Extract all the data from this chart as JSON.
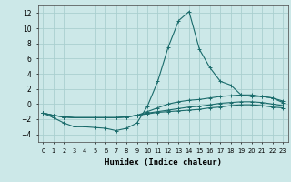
{
  "xlabel": "Humidex (Indice chaleur)",
  "background_color": "#cce8e8",
  "grid_color": "#aacfcf",
  "line_color": "#1a6b6b",
  "xlim": [
    -0.5,
    23.5
  ],
  "ylim": [
    -5,
    13
  ],
  "yticks": [
    -4,
    -2,
    0,
    2,
    4,
    6,
    8,
    10,
    12
  ],
  "xticks": [
    0,
    1,
    2,
    3,
    4,
    5,
    6,
    7,
    8,
    9,
    10,
    11,
    12,
    13,
    14,
    15,
    16,
    17,
    18,
    19,
    20,
    21,
    22,
    23
  ],
  "xtick_labels": [
    "0",
    "1",
    "2",
    "3",
    "4",
    "5",
    "6",
    "7",
    "8",
    "9",
    "10",
    "11",
    "12",
    "13",
    "14",
    "15",
    "16",
    "17",
    "18",
    "19",
    "20",
    "21",
    "22",
    "23"
  ],
  "series": [
    {
      "x": [
        0,
        1,
        2,
        3,
        4,
        5,
        6,
        7,
        8,
        9,
        10,
        11,
        12,
        13,
        14,
        15,
        16,
        17,
        18,
        19,
        20,
        21,
        22,
        23
      ],
      "y": [
        -1.2,
        -1.8,
        -2.5,
        -3.0,
        -3.0,
        -3.1,
        -3.2,
        -3.5,
        -3.2,
        -2.5,
        -0.3,
        3.0,
        7.5,
        11.0,
        12.2,
        7.2,
        4.8,
        3.0,
        2.5,
        1.2,
        1.0,
        1.0,
        0.8,
        0.2
      ]
    },
    {
      "x": [
        0,
        1,
        2,
        3,
        4,
        5,
        6,
        7,
        8,
        9,
        10,
        11,
        12,
        13,
        14,
        15,
        16,
        17,
        18,
        19,
        20,
        21,
        22,
        23
      ],
      "y": [
        -1.2,
        -1.5,
        -1.7,
        -1.8,
        -1.8,
        -1.8,
        -1.8,
        -1.8,
        -1.7,
        -1.5,
        -1.0,
        -0.5,
        0.0,
        0.3,
        0.5,
        0.6,
        0.8,
        1.0,
        1.1,
        1.2,
        1.2,
        1.0,
        0.8,
        0.4
      ]
    },
    {
      "x": [
        0,
        1,
        2,
        3,
        4,
        5,
        6,
        7,
        8,
        9,
        10,
        11,
        12,
        13,
        14,
        15,
        16,
        17,
        18,
        19,
        20,
        21,
        22,
        23
      ],
      "y": [
        -1.2,
        -1.5,
        -1.7,
        -1.8,
        -1.8,
        -1.8,
        -1.8,
        -1.8,
        -1.7,
        -1.5,
        -1.2,
        -1.0,
        -0.8,
        -0.6,
        -0.4,
        -0.3,
        -0.1,
        0.1,
        0.2,
        0.3,
        0.3,
        0.2,
        0.0,
        -0.2
      ]
    },
    {
      "x": [
        0,
        1,
        2,
        3,
        4,
        5,
        6,
        7,
        8,
        9,
        10,
        11,
        12,
        13,
        14,
        15,
        16,
        17,
        18,
        19,
        20,
        21,
        22,
        23
      ],
      "y": [
        -1.2,
        -1.5,
        -1.7,
        -1.8,
        -1.8,
        -1.8,
        -1.8,
        -1.8,
        -1.7,
        -1.5,
        -1.3,
        -1.1,
        -1.0,
        -0.9,
        -0.8,
        -0.7,
        -0.5,
        -0.4,
        -0.2,
        -0.1,
        -0.1,
        -0.2,
        -0.4,
        -0.5
      ]
    }
  ]
}
